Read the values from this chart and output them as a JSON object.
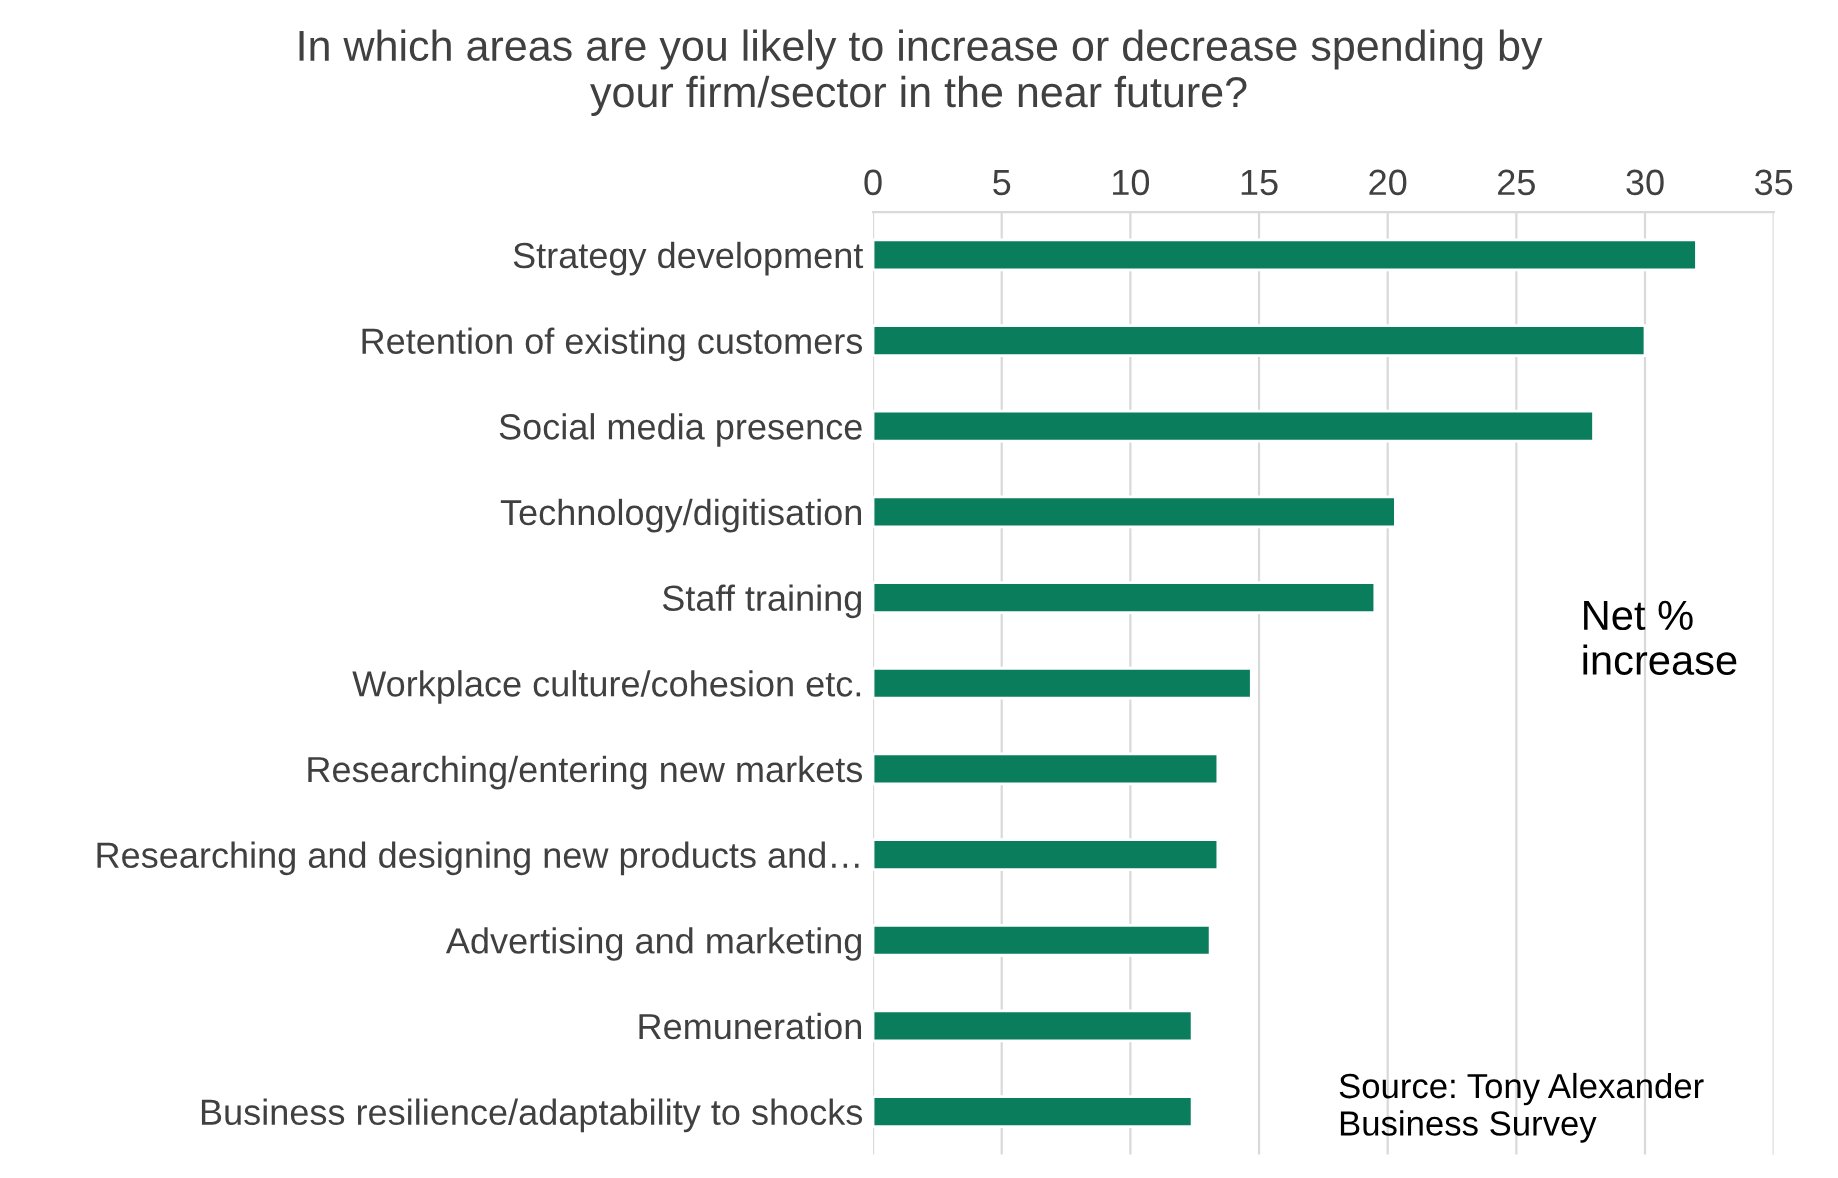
{
  "chart_data": {
    "type": "bar",
    "orientation": "horizontal",
    "title": "In which areas are you likely to increase or decrease spending by\nyour firm/sector in the near future?",
    "categories": [
      "Strategy development",
      "Retention of existing customers",
      "Social media presence",
      "Technology/digitisation",
      "Staff training",
      "Workplace culture/cohesion etc.",
      "Researching/entering new markets",
      "Researching and designing new products and…",
      "Advertising and marketing",
      "Remuneration",
      "Business resilience/adaptability to shocks"
    ],
    "values": [
      32,
      30,
      28,
      20.3,
      19.5,
      14.7,
      13.4,
      13.4,
      13.1,
      12.4,
      12.4
    ],
    "color": "#0a7d5c",
    "xlim": [
      0,
      35
    ],
    "xticks": [
      0,
      5,
      10,
      15,
      20,
      25,
      30,
      35
    ],
    "grid": "x",
    "annotations": [
      "Net % increase",
      "Source: Tony Alexander Business Survey"
    ]
  }
}
